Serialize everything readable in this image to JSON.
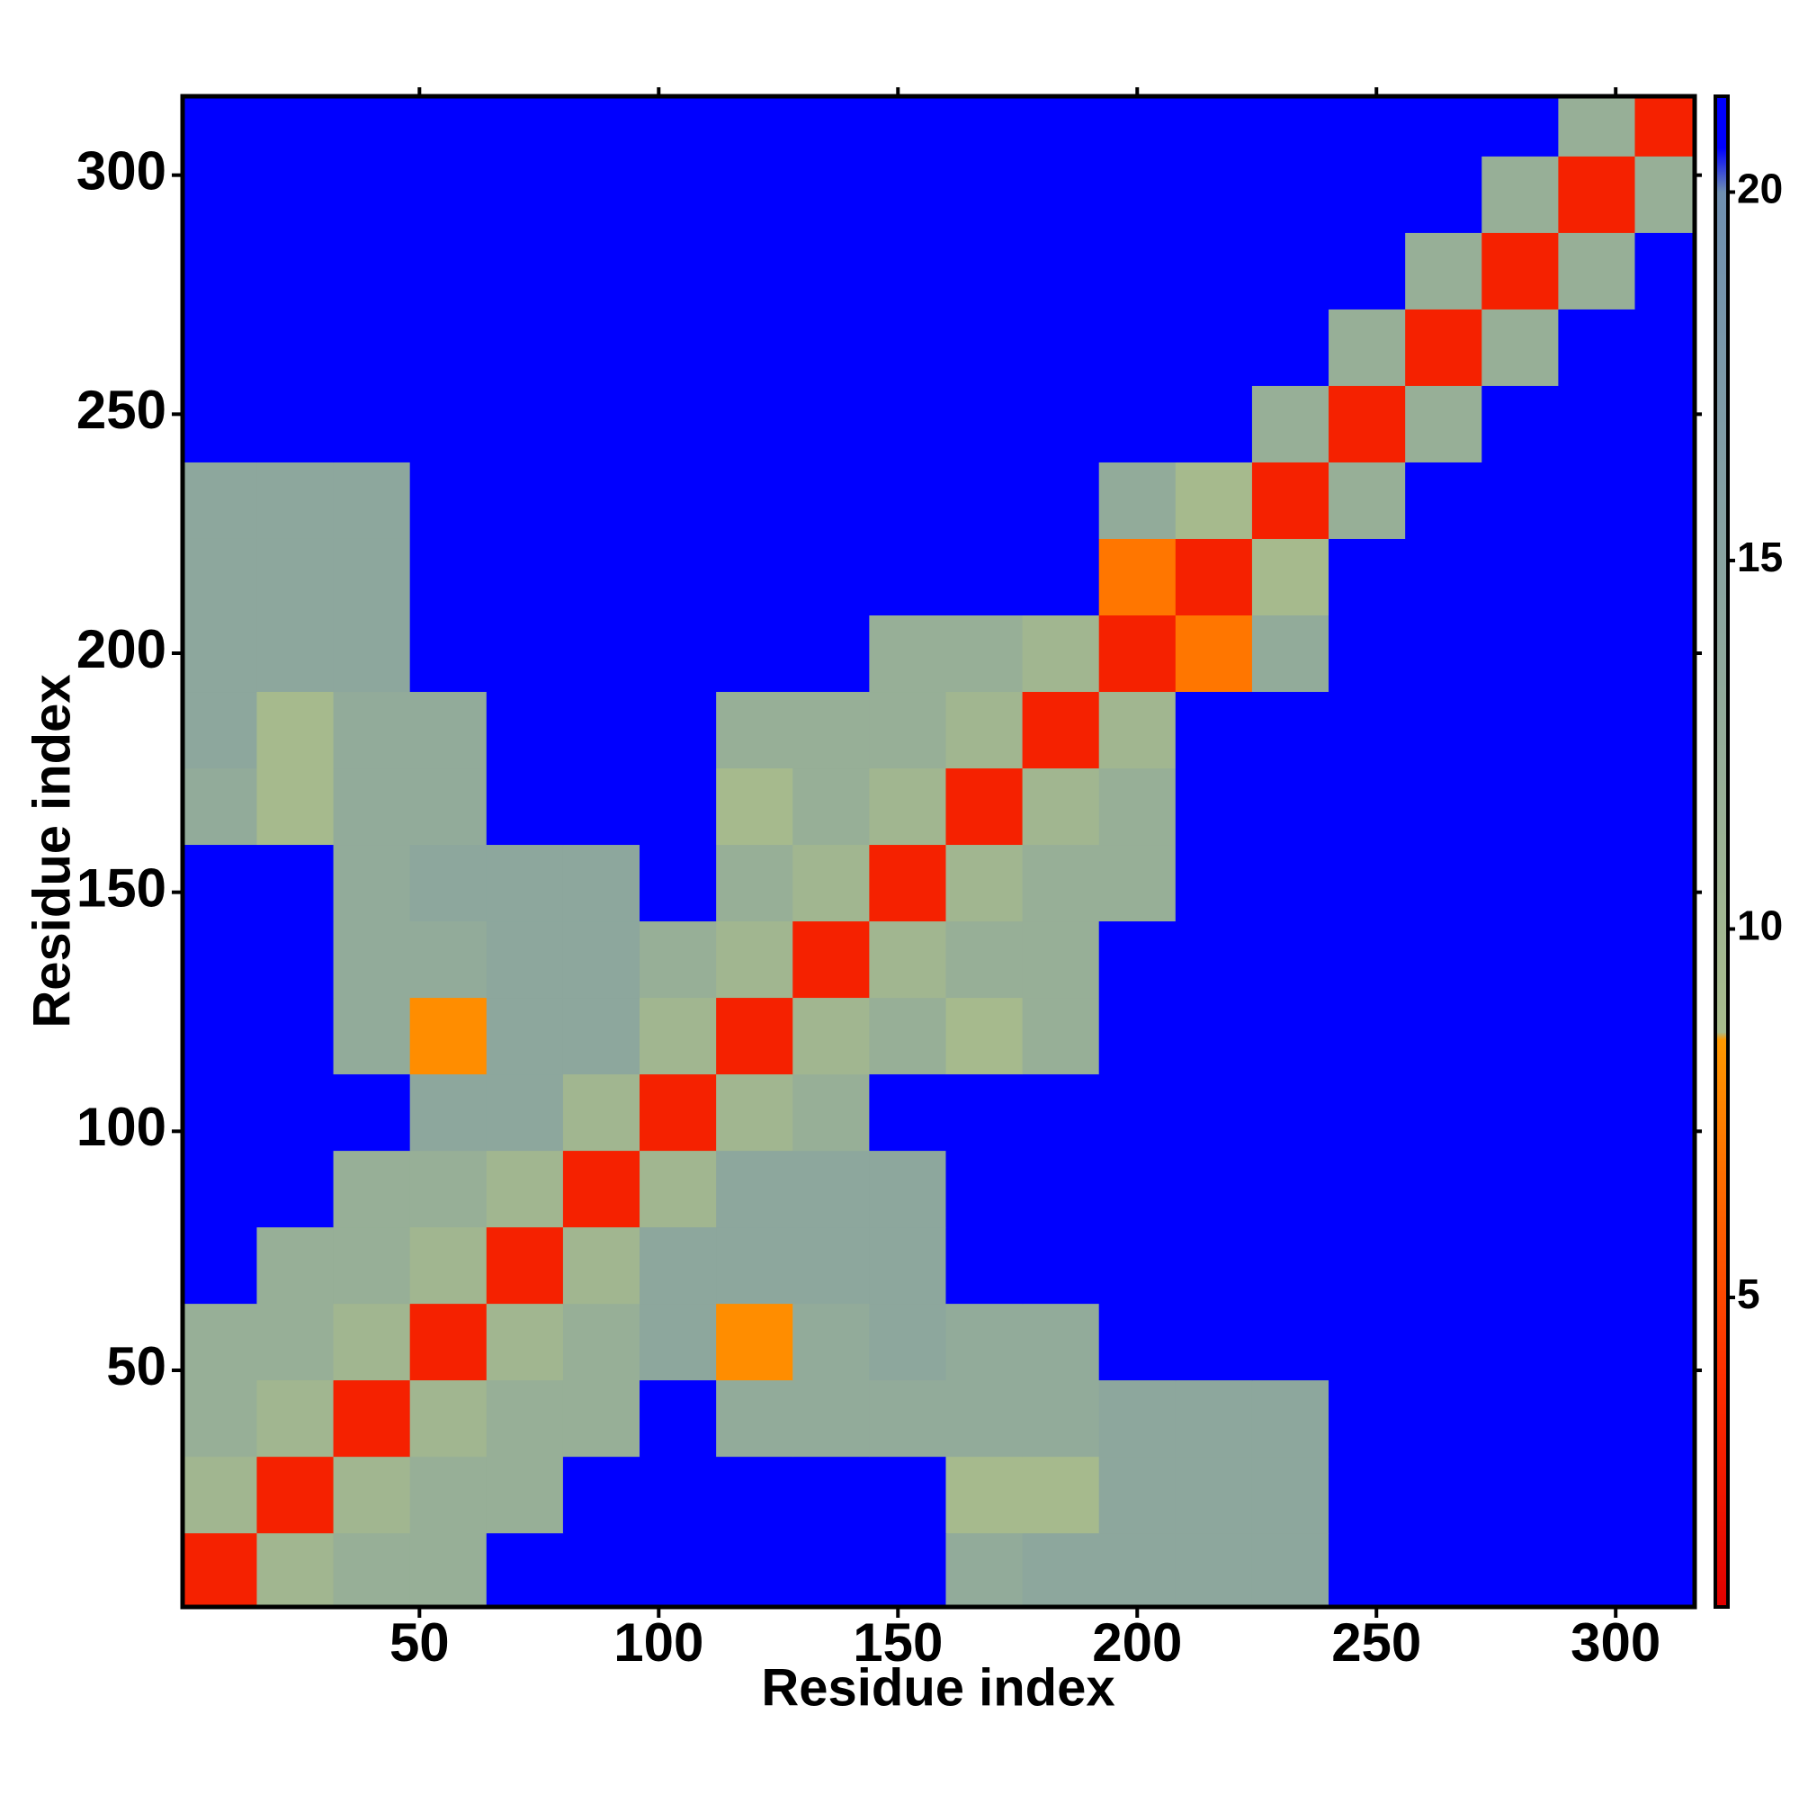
{
  "chart_data": {
    "type": "heatmap",
    "xlabel": "Residue index",
    "ylabel": "Residue index",
    "xlim": [
      0.5,
      316.5
    ],
    "ylim": [
      0.5,
      316.5
    ],
    "xticks": [
      50,
      100,
      150,
      200,
      250,
      300
    ],
    "yticks": [
      50,
      100,
      150,
      200,
      250,
      300
    ],
    "x": [
      8,
      24,
      40,
      56,
      72,
      88,
      104,
      120,
      136,
      152,
      168,
      184,
      200,
      216,
      232,
      248,
      264,
      280,
      296,
      312
    ],
    "y": [
      8,
      24,
      40,
      56,
      72,
      88,
      104,
      120,
      136,
      152,
      168,
      184,
      200,
      216,
      232,
      248,
      264,
      280,
      296,
      312
    ],
    "z": [
      [
        3,
        10,
        12,
        12,
        21,
        21,
        21,
        21,
        21,
        21,
        13,
        14,
        14,
        14,
        14,
        21,
        21,
        21,
        21,
        21
      ],
      [
        10,
        3,
        10,
        12,
        12,
        21,
        21,
        21,
        21,
        21,
        9,
        9,
        14,
        14,
        14,
        21,
        21,
        21,
        21,
        21
      ],
      [
        12,
        10,
        3,
        10,
        12,
        12,
        21,
        13,
        13,
        13,
        13,
        13,
        14,
        14,
        14,
        21,
        21,
        21,
        21,
        21
      ],
      [
        12,
        12,
        10,
        3,
        10,
        12,
        14,
        8,
        13,
        14,
        13,
        13,
        21,
        21,
        21,
        21,
        21,
        21,
        21,
        21
      ],
      [
        21,
        12,
        12,
        10,
        3,
        10,
        14,
        14,
        14,
        14,
        21,
        21,
        21,
        21,
        21,
        21,
        21,
        21,
        21,
        21
      ],
      [
        21,
        21,
        12,
        12,
        10,
        3,
        10,
        14,
        14,
        14,
        21,
        21,
        21,
        21,
        21,
        21,
        21,
        21,
        21,
        21
      ],
      [
        21,
        21,
        21,
        14,
        14,
        10,
        3,
        10,
        12,
        21,
        21,
        21,
        21,
        21,
        21,
        21,
        21,
        21,
        21,
        21
      ],
      [
        21,
        21,
        13,
        8,
        14,
        14,
        10,
        3,
        10,
        12,
        9,
        12,
        21,
        21,
        21,
        21,
        21,
        21,
        21,
        21
      ],
      [
        21,
        21,
        13,
        13,
        14,
        14,
        12,
        10,
        3,
        10,
        12,
        12,
        21,
        21,
        21,
        21,
        21,
        21,
        21,
        21
      ],
      [
        21,
        21,
        13,
        14,
        14,
        14,
        21,
        12,
        10,
        3,
        10,
        12,
        12,
        21,
        21,
        21,
        21,
        21,
        21,
        21
      ],
      [
        13,
        9,
        13,
        13,
        21,
        21,
        21,
        9,
        12,
        10,
        3,
        10,
        12,
        21,
        21,
        21,
        21,
        21,
        21,
        21
      ],
      [
        14,
        9,
        13,
        13,
        21,
        21,
        21,
        12,
        12,
        12,
        10,
        3,
        10,
        21,
        21,
        21,
        21,
        21,
        21,
        21
      ],
      [
        14,
        14,
        14,
        21,
        21,
        21,
        21,
        21,
        21,
        12,
        12,
        10,
        3,
        7,
        13,
        21,
        21,
        21,
        21,
        21
      ],
      [
        14,
        14,
        14,
        21,
        21,
        21,
        21,
        21,
        21,
        21,
        21,
        21,
        7,
        3,
        9,
        21,
        21,
        21,
        21,
        21
      ],
      [
        14,
        14,
        14,
        21,
        21,
        21,
        21,
        21,
        21,
        21,
        21,
        21,
        13,
        9,
        3,
        12,
        21,
        21,
        21,
        21
      ],
      [
        21,
        21,
        21,
        21,
        21,
        21,
        21,
        21,
        21,
        21,
        21,
        21,
        21,
        21,
        12,
        3,
        12,
        21,
        21,
        21
      ],
      [
        21,
        21,
        21,
        21,
        21,
        21,
        21,
        21,
        21,
        21,
        21,
        21,
        21,
        21,
        21,
        12,
        3,
        12,
        21,
        21
      ],
      [
        21,
        21,
        21,
        21,
        21,
        21,
        21,
        21,
        21,
        21,
        21,
        21,
        21,
        21,
        21,
        21,
        12,
        3,
        12,
        21
      ],
      [
        21,
        21,
        21,
        21,
        21,
        21,
        21,
        21,
        21,
        21,
        21,
        21,
        21,
        21,
        21,
        21,
        21,
        12,
        3,
        12
      ],
      [
        21,
        21,
        21,
        21,
        21,
        21,
        21,
        21,
        21,
        21,
        21,
        21,
        21,
        21,
        21,
        21,
        21,
        21,
        12,
        3
      ]
    ],
    "zlim": [
      0.8,
      21.3
    ],
    "zticks": [
      5,
      10,
      15,
      20
    ],
    "colorscale": [
      [
        0.8,
        "#e00000"
      ],
      [
        4,
        "#ff3000"
      ],
      [
        8.5,
        "#ff9900"
      ],
      [
        8.6,
        "#a8bc8c"
      ],
      [
        20,
        "#6f8fb0"
      ],
      [
        20.6,
        "#0000ff"
      ],
      [
        21.3,
        "#0000ff"
      ]
    ]
  }
}
